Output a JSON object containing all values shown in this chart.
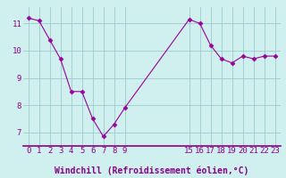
{
  "x": [
    0,
    1,
    2,
    3,
    4,
    5,
    6,
    7,
    8,
    9,
    15,
    16,
    17,
    18,
    19,
    20,
    21,
    22,
    23
  ],
  "y": [
    11.2,
    11.1,
    10.4,
    9.7,
    8.5,
    8.5,
    7.5,
    6.85,
    7.3,
    7.9,
    11.15,
    11.0,
    10.2,
    9.7,
    9.55,
    9.8,
    9.7,
    9.8,
    9.8
  ],
  "line_color": "#990099",
  "marker": "D",
  "marker_size": 2.5,
  "bg_color": "#cff0ee",
  "grid_color": "#99cccc",
  "xlabel": "Windchill (Refroidissement éolien,°C)",
  "xlabel_color": "#880088",
  "xticks": [
    0,
    1,
    2,
    3,
    4,
    5,
    6,
    7,
    8,
    9,
    15,
    16,
    17,
    18,
    19,
    20,
    21,
    22,
    23
  ],
  "yticks": [
    7,
    8,
    9,
    10,
    11
  ],
  "ylim": [
    6.5,
    11.6
  ],
  "xlim": [
    -0.5,
    23.5
  ],
  "tick_color": "#880088",
  "tick_fontsize": 6.5,
  "xlabel_fontsize": 7,
  "axis_line_color": "#880088"
}
